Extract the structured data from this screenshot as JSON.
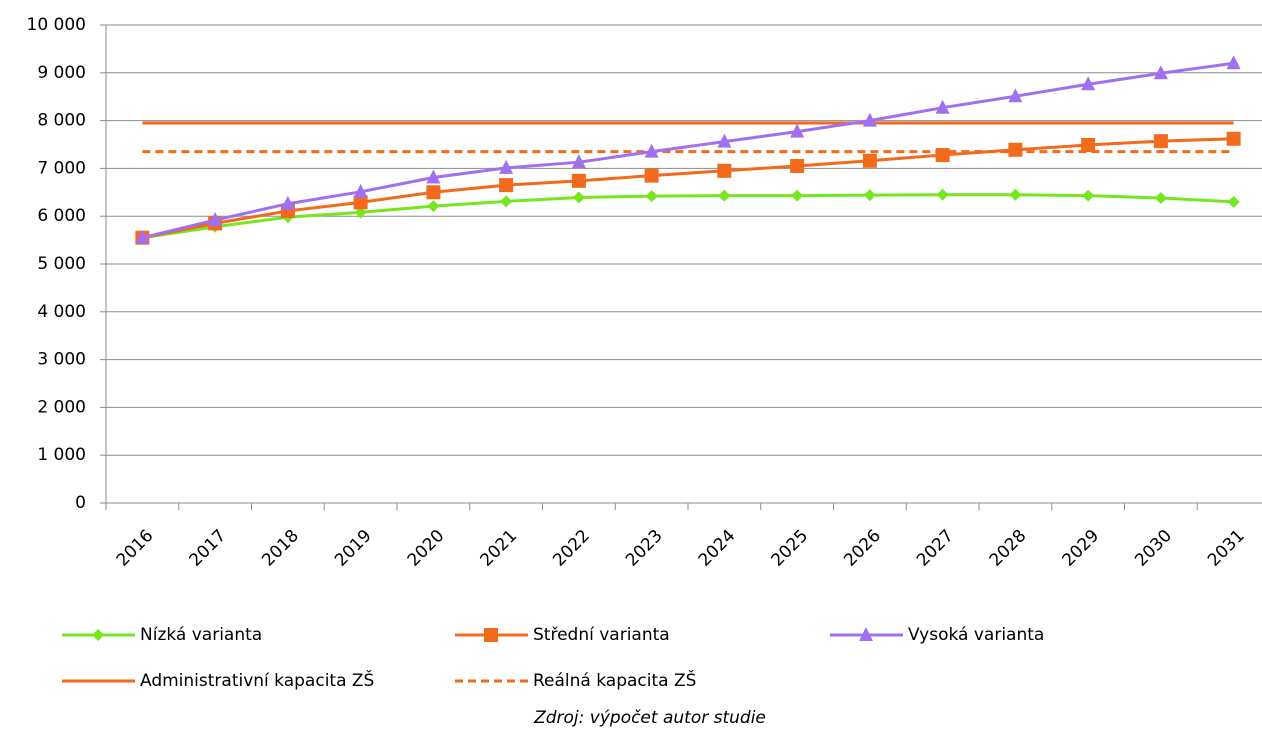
{
  "chart_data": {
    "type": "line",
    "categories": [
      "2016",
      "2017",
      "2018",
      "2019",
      "2020",
      "2021",
      "2022",
      "2023",
      "2024",
      "2025",
      "2026",
      "2027",
      "2028",
      "2029",
      "2030",
      "2031"
    ],
    "series": [
      {
        "name": "Nízká varianta",
        "color": "#76e61e",
        "marker": "diamond",
        "dash": false,
        "values": [
          5550,
          5780,
          5980,
          6080,
          6210,
          6310,
          6390,
          6420,
          6430,
          6430,
          6440,
          6450,
          6450,
          6430,
          6380,
          6300
        ]
      },
      {
        "name": "Střední varianta",
        "color": "#f26a1b",
        "marker": "square",
        "dash": false,
        "values": [
          5550,
          5850,
          6110,
          6290,
          6500,
          6650,
          6740,
          6850,
          6950,
          7050,
          7160,
          7280,
          7390,
          7490,
          7570,
          7620
        ]
      },
      {
        "name": "Vysoká varianta",
        "color": "#a070f0",
        "marker": "triangle",
        "dash": false,
        "values": [
          5550,
          5920,
          6260,
          6510,
          6810,
          7010,
          7130,
          7350,
          7560,
          7770,
          8000,
          8270,
          8510,
          8760,
          8990,
          9200
        ]
      },
      {
        "name": "Administrativní kapacita ZŠ",
        "color": "#f26a1b",
        "marker": null,
        "dash": false,
        "values": [
          7950,
          7950,
          7950,
          7950,
          7950,
          7950,
          7950,
          7950,
          7950,
          7950,
          7950,
          7950,
          7950,
          7950,
          7950,
          7950
        ]
      },
      {
        "name": "Reálná kapacita ZŠ",
        "color": "#f26a1b",
        "marker": null,
        "dash": true,
        "values": [
          7350,
          7350,
          7350,
          7350,
          7350,
          7350,
          7350,
          7350,
          7350,
          7350,
          7350,
          7350,
          7350,
          7350,
          7350,
          7350
        ]
      }
    ],
    "ylim": [
      0,
      10000
    ],
    "yticks": [
      0,
      {
        "value": 1000,
        "label": "1 000"
      },
      {
        "value": 2000,
        "label": "2 000"
      },
      {
        "value": 3000,
        "label": "3 000"
      },
      {
        "value": 4000,
        "label": "4 000"
      },
      {
        "value": 5000,
        "label": "5 000"
      },
      {
        "value": 6000,
        "label": "6 000"
      },
      {
        "value": 7000,
        "label": "7 000"
      },
      {
        "value": 8000,
        "label": "8 000"
      },
      {
        "value": 9000,
        "label": "9 000"
      },
      {
        "value": 10000,
        "label": "10 000"
      }
    ],
    "grid": true,
    "source": "Zdroj: výpočet autor studie"
  }
}
